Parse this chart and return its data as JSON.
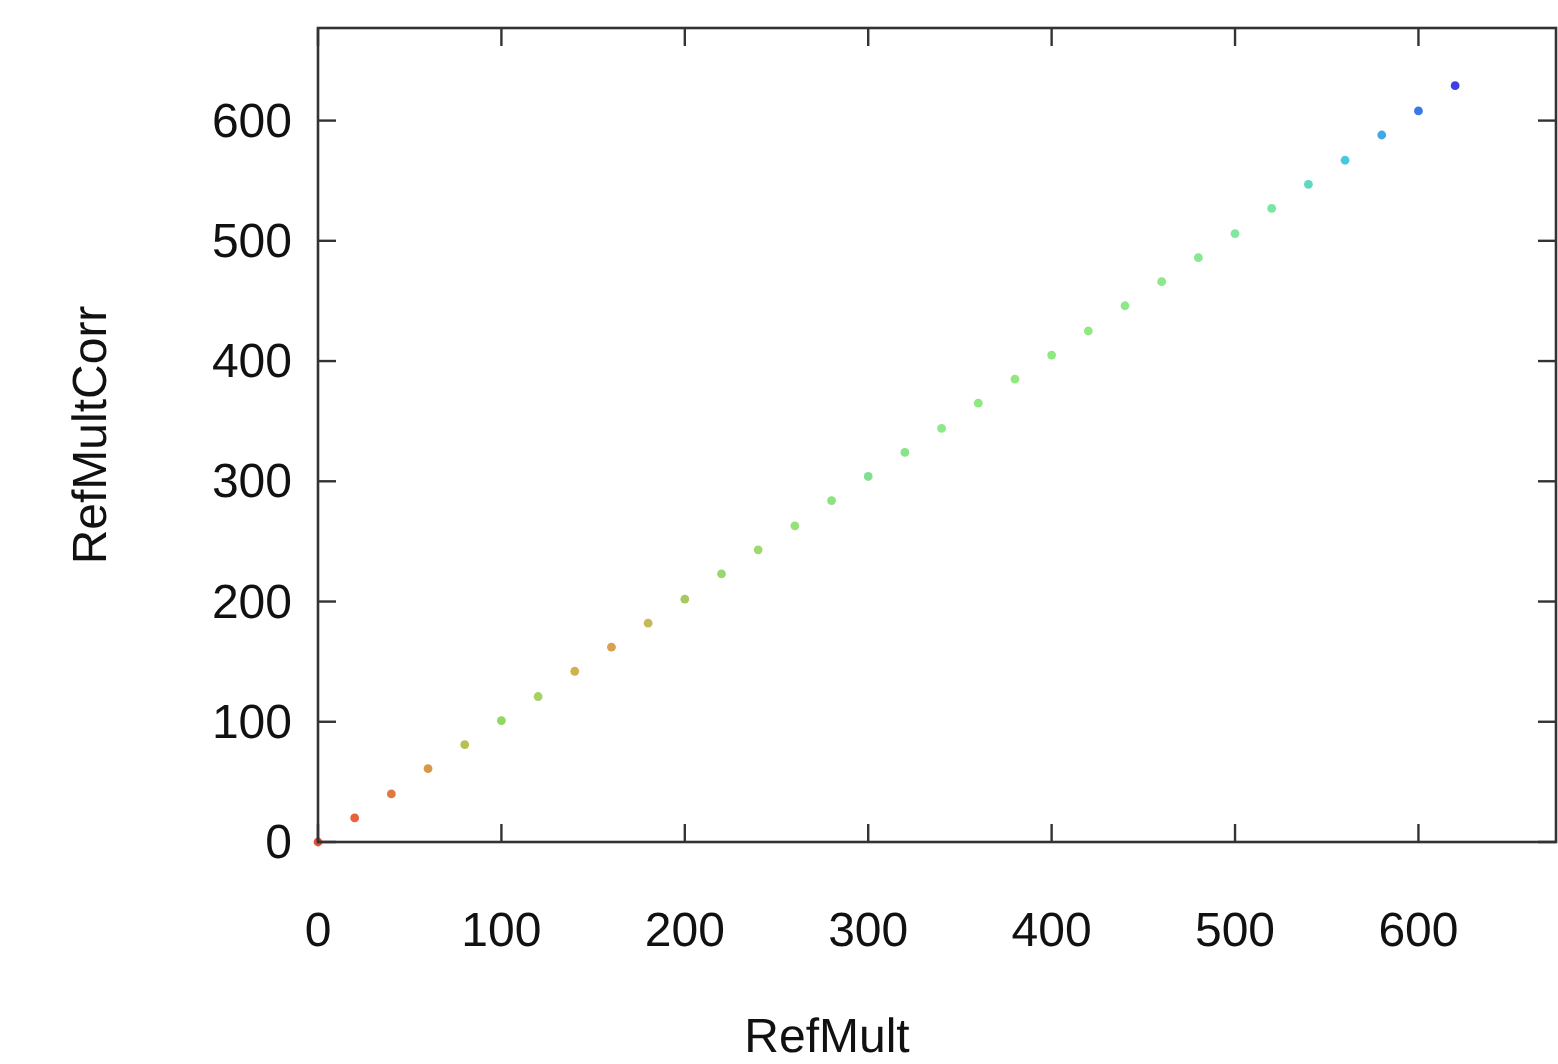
{
  "chart_data": {
    "type": "scatter",
    "xlabel": "RefMult",
    "ylabel": "RefMultCorr",
    "marker": "circle",
    "grid": false,
    "xlim": [
      0,
      675
    ],
    "ylim": [
      0,
      677
    ],
    "xticks": [
      0,
      100,
      200,
      300,
      400,
      500,
      600
    ],
    "yticks": [
      0,
      100,
      200,
      300,
      400,
      500,
      600
    ],
    "x": [
      0,
      20,
      40,
      60,
      80,
      100,
      120,
      140,
      160,
      180,
      200,
      220,
      240,
      260,
      280,
      300,
      320,
      340,
      360,
      380,
      400,
      420,
      440,
      460,
      480,
      500,
      520,
      540,
      560,
      580,
      600,
      620
    ],
    "values": [
      0,
      20,
      40,
      61,
      81,
      101,
      121,
      142,
      162,
      182,
      202,
      223,
      243,
      263,
      284,
      304,
      324,
      344,
      365,
      385,
      405,
      425,
      446,
      466,
      486,
      506,
      527,
      547,
      567,
      588,
      608,
      629
    ],
    "colors": [
      "#e8503a",
      "#e86040",
      "#e07840",
      "#d89848",
      "#b8c050",
      "#90d860",
      "#a8d060",
      "#d0b050",
      "#d8a050",
      "#c8b858",
      "#a8c860",
      "#98d870",
      "#a0d870",
      "#98e078",
      "#90e080",
      "#80e090",
      "#88e488",
      "#8ce888",
      "#90e880",
      "#90e880",
      "#90e880",
      "#90e880",
      "#8ee888",
      "#8ce888",
      "#88e890",
      "#80e8a0",
      "#78e8a0",
      "#60d8c0",
      "#48c8e0",
      "#40a8e8",
      "#3878e8",
      "#4040e0"
    ]
  }
}
